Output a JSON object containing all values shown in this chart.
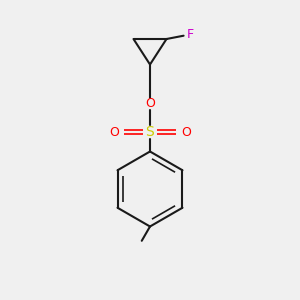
{
  "bg_color": "#f0f0f0",
  "bond_color": "#1a1a1a",
  "O_color": "#ff0000",
  "S_color": "#cccc00",
  "F_color": "#cc00cc",
  "lw": 1.5,
  "dlw": 1.2,
  "fig_size": [
    3.0,
    3.0
  ],
  "dpi": 100,
  "xlim": [
    0,
    10
  ],
  "ylim": [
    0,
    10
  ]
}
